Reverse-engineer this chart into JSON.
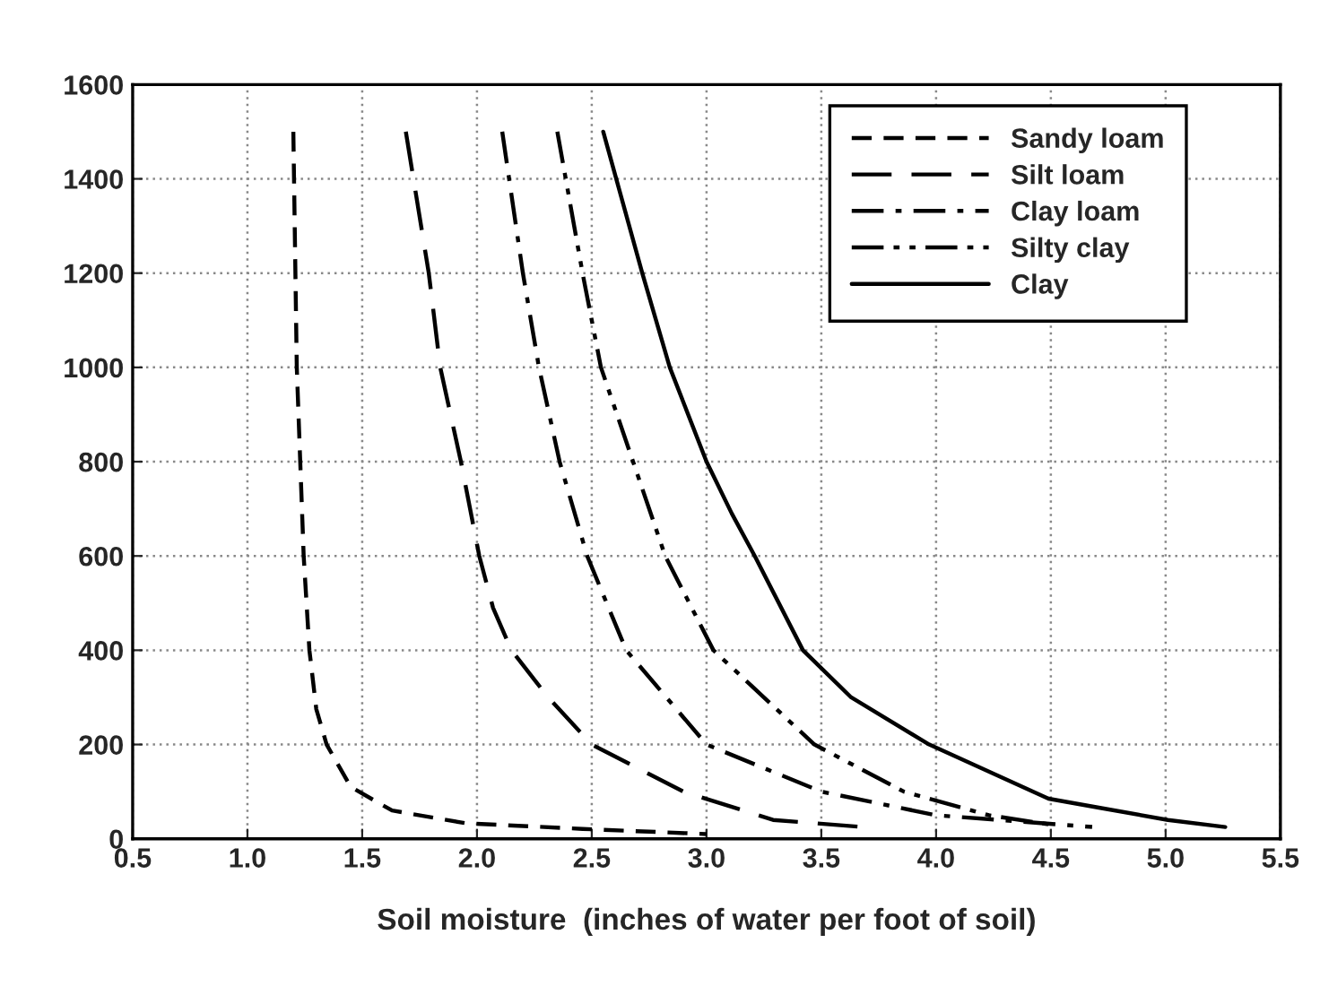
{
  "chart_data": {
    "type": "line",
    "xlabel": "Soil moisture  (inches of water per foot of soil)",
    "xlim": [
      0.5,
      5.5
    ],
    "ylim": [
      0,
      1600
    ],
    "xticks": [
      0.5,
      {
        "value": 1,
        "label": "1.0"
      },
      1.5,
      {
        "value": 2,
        "label": "2.0"
      },
      2.5,
      {
        "value": 3,
        "label": "3.0"
      },
      3.5,
      {
        "value": 4,
        "label": "4.0"
      },
      4.5,
      {
        "value": 5,
        "label": "5.0"
      },
      5.5
    ],
    "yticks": [
      0,
      200,
      400,
      600,
      800,
      1000,
      1200,
      1400,
      1600
    ],
    "grid": true,
    "legend": "top right",
    "series": [
      {
        "name": "Sandy loam",
        "color": "#000000",
        "line_style": "dashed",
        "x": [
          1.2,
          1.215,
          1.245,
          1.27,
          1.3,
          1.345,
          1.45,
          1.63,
          1.95,
          2.46,
          3.0
        ],
        "values": [
          1500,
          1000,
          600,
          400,
          275,
          200,
          110,
          60,
          33,
          21,
          10
        ]
      },
      {
        "name": "Silt loam",
        "color": "#000000",
        "line_style": "long dashed",
        "x": [
          1.69,
          1.79,
          1.84,
          1.93,
          2.01,
          2.07,
          2.15,
          2.31,
          2.5,
          2.9,
          3.29,
          3.68
        ],
        "values": [
          1500,
          1200,
          1000,
          800,
          600,
          490,
          400,
          300,
          200,
          100,
          40,
          25
        ]
      },
      {
        "name": "Clay loam",
        "color": "#000000",
        "line_style": "dash dot",
        "x": [
          2.11,
          2.2,
          2.27,
          2.36,
          2.48,
          2.65,
          3.0,
          3.5,
          4.0,
          4.68
        ],
        "values": [
          1500,
          1200,
          1000,
          800,
          600,
          400,
          200,
          100,
          50,
          25
        ]
      },
      {
        "name": "Silty clay",
        "color": "#000000",
        "line_style": "dash dot dot",
        "x": [
          2.35,
          2.46,
          2.54,
          2.68,
          2.82,
          3.03,
          3.47,
          3.86,
          4.23,
          4.5
        ],
        "values": [
          1500,
          1200,
          1000,
          800,
          600,
          400,
          200,
          100,
          50,
          30
        ]
      },
      {
        "name": "Clay",
        "color": "#000000",
        "line_style": "solid",
        "x": [
          2.55,
          2.72,
          2.84,
          3.0,
          3.11,
          3.21,
          3.42,
          3.63,
          3.97,
          4.49,
          4.72,
          5.01,
          5.26
        ],
        "values": [
          1500,
          1200,
          1000,
          800,
          690,
          600,
          400,
          300,
          200,
          85,
          65,
          40,
          25
        ]
      }
    ]
  }
}
